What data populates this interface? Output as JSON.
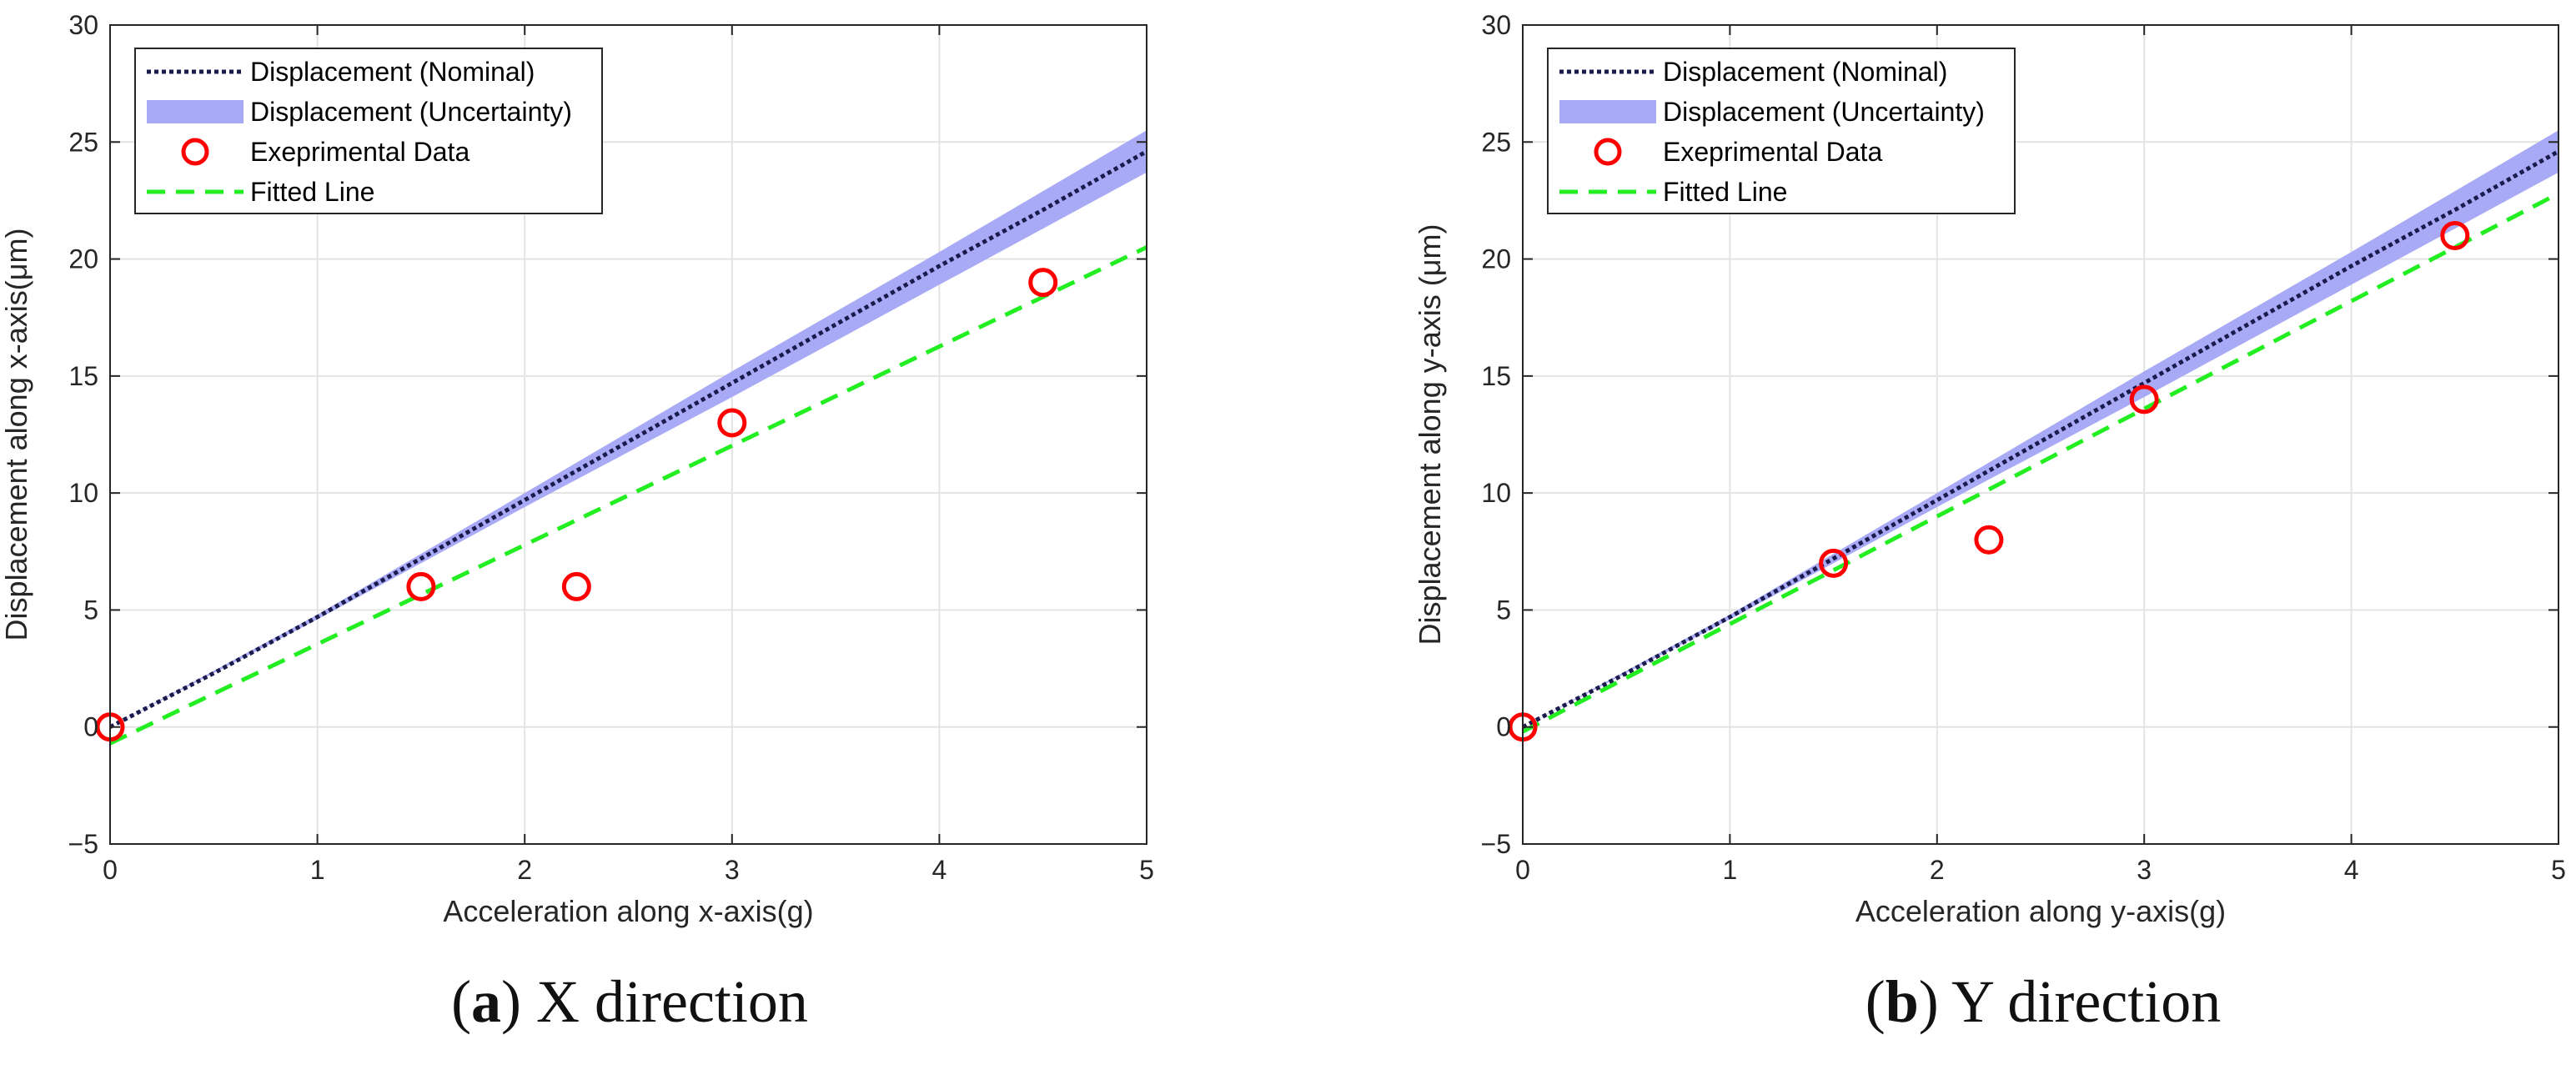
{
  "colors": {
    "nominal": "#1a1a4d",
    "uncertainty": "#a9aaf5",
    "experimental": "#ff0000",
    "fitted": "#22ee22",
    "grid": "#e3e3e3",
    "axis": "#262626"
  },
  "legend": {
    "nominal": "Displacement (Nominal)",
    "uncertainty": "Displacement (Uncertainty)",
    "experimental": "Exeprimental Data",
    "fitted": "Fitted Line"
  },
  "panels": [
    {
      "caption_letter": "a",
      "caption_text": "X direction"
    },
    {
      "caption_letter": "b",
      "caption_text": "Y direction"
    }
  ],
  "chart_data": [
    {
      "type": "line",
      "title": "",
      "xlabel": "Acceleration along x-axis(g)",
      "ylabel": "Displacement along x-axis(μm)",
      "xlim": [
        0,
        5
      ],
      "ylim": [
        -5,
        30
      ],
      "xticks": [
        0,
        1,
        2,
        3,
        4,
        5
      ],
      "yticks": [
        -5,
        0,
        5,
        10,
        15,
        20,
        25,
        30
      ],
      "ytick_labels": [
        "−5",
        "0",
        "5",
        "10",
        "15",
        "20",
        "25",
        "30"
      ],
      "grid": true,
      "legend_position": "top-left",
      "nominal": {
        "x": [
          0,
          0.5,
          1,
          1.5,
          2,
          2.5,
          3,
          3.5,
          4,
          4.5,
          5
        ],
        "y": [
          0,
          2.3,
          4.7,
          7.2,
          9.7,
          12.2,
          14.7,
          17.2,
          19.7,
          22.1,
          24.6
        ]
      },
      "uncertainty_lower": {
        "x": [
          0,
          1,
          2,
          3,
          4,
          5
        ],
        "y": [
          0,
          4.6,
          9.4,
          14.1,
          18.9,
          23.7
        ]
      },
      "uncertainty_upper": {
        "x": [
          0,
          1,
          2,
          3,
          4,
          5
        ],
        "y": [
          0,
          4.8,
          10.0,
          15.2,
          20.3,
          25.5
        ]
      },
      "experimental": {
        "x": [
          0,
          1.5,
          2.25,
          3,
          4.5
        ],
        "y": [
          0,
          6,
          6,
          13,
          19
        ]
      },
      "fitted": {
        "x": [
          0,
          5
        ],
        "y": [
          -0.7,
          20.5
        ]
      }
    },
    {
      "type": "line",
      "title": "",
      "xlabel": "Acceleration along y-axis(g)",
      "ylabel": "Displacement along y-axis (μm)",
      "xlim": [
        0,
        5
      ],
      "ylim": [
        -5,
        30
      ],
      "xticks": [
        0,
        1,
        2,
        3,
        4,
        5
      ],
      "yticks": [
        -5,
        0,
        5,
        10,
        15,
        20,
        25,
        30
      ],
      "ytick_labels": [
        "−5",
        "0",
        "5",
        "10",
        "15",
        "20",
        "25",
        "30"
      ],
      "grid": true,
      "legend_position": "top-left",
      "nominal": {
        "x": [
          0,
          0.5,
          1,
          1.5,
          2,
          2.5,
          3,
          3.5,
          4,
          4.5,
          5
        ],
        "y": [
          0,
          2.3,
          4.7,
          7.2,
          9.7,
          12.2,
          14.7,
          17.2,
          19.7,
          22.1,
          24.6
        ]
      },
      "uncertainty_lower": {
        "x": [
          0,
          1,
          2,
          3,
          4,
          5
        ],
        "y": [
          0,
          4.6,
          9.4,
          14.1,
          18.9,
          23.7
        ]
      },
      "uncertainty_upper": {
        "x": [
          0,
          1,
          2,
          3,
          4,
          5
        ],
        "y": [
          0,
          4.8,
          10.0,
          15.2,
          20.3,
          25.5
        ]
      },
      "experimental": {
        "x": [
          0,
          1.5,
          2.25,
          3,
          4.5
        ],
        "y": [
          0,
          7,
          8,
          14,
          21
        ]
      },
      "fitted": {
        "x": [
          0,
          5
        ],
        "y": [
          -0.2,
          22.8
        ]
      }
    }
  ]
}
